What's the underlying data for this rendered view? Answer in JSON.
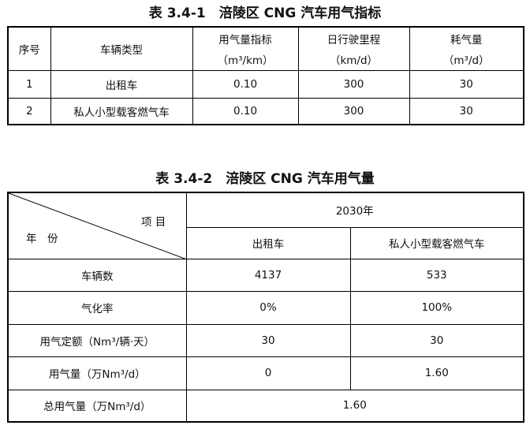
{
  "table1": {
    "title": "表 3.4-1　涪陵区 CNG 汽车用气指标",
    "headers": {
      "no": "序号",
      "type": "车辆类型",
      "index": "用气量指标",
      "index_unit": "（m³/km）",
      "mileage": "日行驶里程",
      "mileage_unit": "（km/d）",
      "consumption": "耗气量",
      "consumption_unit": "（m³/d）"
    },
    "rows": [
      [
        "1",
        "出租车",
        "0.10",
        "300",
        "30"
      ],
      [
        "2",
        "私人小型载客燃气车",
        "0.10",
        "300",
        "30"
      ]
    ]
  },
  "table2": {
    "title": "表 3.4-2　涪陵区 CNG 汽车用气量",
    "corner_top": "项 目",
    "corner_bottom": "年　份",
    "year": "2030年",
    "col_headers": [
      "出租车",
      "私人小型载客燃气车"
    ],
    "rows": [
      [
        "车辆数",
        "4137",
        "533"
      ],
      [
        "气化率",
        "0%",
        "100%"
      ],
      [
        "用气定额（Nm³/辆·天）",
        "30",
        "30"
      ],
      [
        "用气量（万Nm³/d）",
        "0",
        "1.60"
      ]
    ],
    "total": [
      "总用气量（万Nm³/d）",
      "1.60"
    ]
  }
}
